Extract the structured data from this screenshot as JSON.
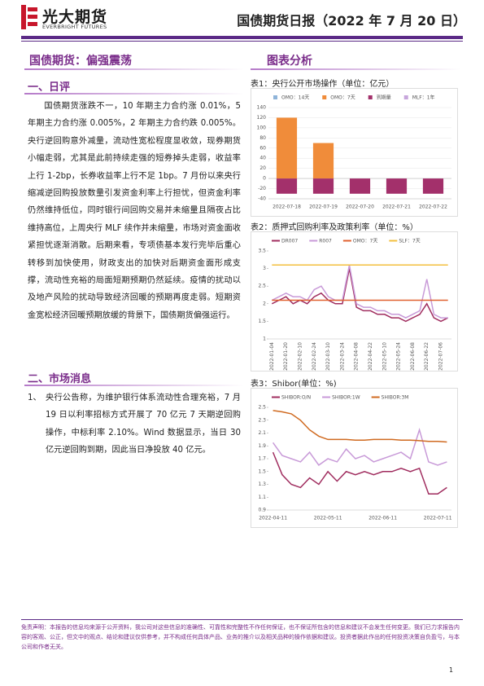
{
  "header": {
    "logo": "光大期货",
    "logo_en": "EVERBRIGHT FUTURES",
    "title": "国债期货日报（2022 年 7 月 20 日）"
  },
  "left": {
    "headline": "国债期货：偏强震荡",
    "section1": {
      "title": "一、日评",
      "body": "国债期货涨跌不一，10 年期主力合约涨 0.01%，5 年期主力合约涨 0.005%，2 年期主力合约跌 0.005%。央行逆回购意外减量，流动性宽松程度显收敛，现券期货小幅走弱，尤其是此前持续走强的短券掉头走弱，收益率上行 1-2bp，长券收益率上行不足 1bp。7 月份以来央行缩减逆回购投放数量引发资金利率上行担忧，但资金利率仍然维持低位，同时银行间回购交易并未缩量且隔夜占比维持高位，上周央行 MLF 续作并未缩量，市场对资金面收紧担忧逐渐消散。后期来看，专项债基本发行完毕后重心转移到加快使用，财政支出的加快对后期资金面形成支撑，流动性充裕的局面短期预期仍然延续。疫情的扰动以及地产风险的扰动导致经济回暖的预期再度走弱。短期资金宽松经济回暖预期放缓的背景下，国债期货偏强运行。"
    },
    "section2": {
      "title": "二、市场消息",
      "items": [
        {
          "num": "1、",
          "text": "央行公告称，为维护银行体系流动性合理充裕，7 月 19 日以利率招标方式开展了 70 亿元 7 天期逆回购操作，中标利率 2.10%。Wind 数据显示，当日 30 亿元逆回购到期，因此当日净投放 40 亿元。"
        }
      ]
    }
  },
  "right": {
    "title": "图表分析"
  },
  "charts": [
    {
      "type": "bar",
      "caption": "表1：央行公开市场操作（单位：亿元）",
      "categories": [
        "2022-07-18",
        "2022-07-19",
        "2022-07-20",
        "2022-07-21",
        "2022-07-22"
      ],
      "series": [
        {
          "name": "OMO：14天",
          "color": "#8fb4d9",
          "values": [
            0,
            0,
            0,
            0,
            0
          ]
        },
        {
          "name": "OMO：7天",
          "color": "#f08c3a",
          "values": [
            120,
            70,
            0,
            0,
            0
          ]
        },
        {
          "name": "到期量",
          "color": "#a3306b",
          "values": [
            -30,
            -30,
            -30,
            -30,
            -30
          ]
        },
        {
          "name": "MLF：1年",
          "color": "#c7a6dc",
          "values": [
            0,
            0,
            0,
            0,
            0
          ]
        }
      ],
      "ylim": [
        -40,
        140
      ],
      "yticks": [
        -40,
        -20,
        0,
        20,
        40,
        60,
        80,
        100,
        120,
        140
      ],
      "grid": true,
      "legend": "top"
    },
    {
      "type": "line",
      "caption": "表2：质押式回购利率及政策利率（单位：%）",
      "categories": [
        "2022-01-04",
        null,
        "2022-01-20",
        null,
        "2022-02-10",
        null,
        "2022-02-24",
        null,
        "2022-03-10",
        null,
        "2022-03-24",
        null,
        "2022-04-08",
        null,
        "2022-04-22",
        null,
        "2022-05-10",
        null,
        "2022-05-24",
        null,
        "2022-06-08",
        null,
        "2022-06-22",
        null,
        "2022-07-06",
        null
      ],
      "series": [
        {
          "name": "DR007",
          "color": "#a02d5f",
          "values": [
            2.0,
            2.1,
            2.2,
            2.0,
            2.1,
            2.0,
            2.2,
            2.3,
            2.1,
            2.0,
            2.0,
            3.0,
            1.9,
            1.8,
            1.8,
            1.7,
            1.7,
            1.6,
            1.6,
            1.5,
            1.6,
            1.7,
            2.0,
            1.6,
            1.5,
            1.6
          ]
        },
        {
          "name": "R007",
          "color": "#c89ad8",
          "values": [
            2.1,
            2.2,
            2.3,
            2.2,
            2.2,
            2.1,
            2.4,
            2.5,
            2.2,
            2.1,
            2.1,
            3.1,
            2.0,
            1.9,
            1.9,
            1.8,
            1.8,
            1.7,
            1.7,
            1.6,
            1.7,
            1.8,
            2.7,
            1.7,
            1.6,
            1.6
          ]
        },
        {
          "name": "OMO：7天",
          "color": "#e0602f",
          "values": [
            2.1,
            2.1,
            2.1,
            2.1,
            2.1,
            2.1,
            2.1,
            2.1,
            2.1,
            2.1,
            2.1,
            2.1,
            2.1,
            2.1,
            2.1,
            2.1,
            2.1,
            2.1,
            2.1,
            2.1,
            2.1,
            2.1,
            2.1,
            2.1,
            2.1,
            2.1
          ]
        },
        {
          "name": "SLF：7天",
          "color": "#f3bf3f",
          "values": [
            3.1,
            3.1,
            3.1,
            3.1,
            3.1,
            3.1,
            3.1,
            3.1,
            3.1,
            3.1,
            3.1,
            3.1,
            3.1,
            3.1,
            3.1,
            3.1,
            3.1,
            3.1,
            3.1,
            3.1,
            3.1,
            3.1,
            3.1,
            3.1,
            3.1,
            3.1
          ]
        }
      ],
      "ylim": [
        1,
        3.5
      ],
      "yticks": [
        1,
        1.5,
        2,
        2.5,
        3,
        3.5
      ],
      "grid": false,
      "legend": "top",
      "rotate_labels": true
    },
    {
      "type": "line",
      "caption": "表3：Shibor(单位：%)",
      "categories": [
        "2022-04-11",
        null,
        null,
        null,
        null,
        null,
        "2022-05-11",
        null,
        null,
        null,
        null,
        null,
        "2022-06-11",
        null,
        null,
        null,
        null,
        null,
        "2022-07-11",
        null
      ],
      "series": [
        {
          "name": "SHIBOR:O/N",
          "color": "#a02d5f",
          "values": [
            1.8,
            1.45,
            1.3,
            1.25,
            1.4,
            1.3,
            1.5,
            1.35,
            1.5,
            1.45,
            1.5,
            1.45,
            1.5,
            1.5,
            1.55,
            1.5,
            1.55,
            1.15,
            1.15,
            1.25
          ]
        },
        {
          "name": "SHIBOR:1W",
          "color": "#c89ad8",
          "values": [
            1.95,
            1.75,
            1.7,
            1.65,
            1.8,
            1.6,
            1.7,
            1.65,
            1.85,
            1.7,
            1.75,
            1.65,
            1.7,
            1.75,
            1.8,
            1.7,
            2.15,
            1.65,
            1.6,
            1.65
          ]
        },
        {
          "name": "SHIBOR:3M",
          "color": "#d06a20",
          "values": [
            2.45,
            2.43,
            2.4,
            2.3,
            2.15,
            2.05,
            2.0,
            2.0,
            2.0,
            1.99,
            1.99,
            2.0,
            2.0,
            2.0,
            1.99,
            1.99,
            1.98,
            1.97,
            1.97,
            1.96
          ]
        }
      ],
      "ylim": [
        0.9,
        2.5
      ],
      "yticks": [
        0.9,
        1.1,
        1.3,
        1.5,
        1.7,
        1.9,
        2.1,
        2.3,
        2.5
      ],
      "grid": false,
      "legend": "top"
    }
  ],
  "footer": {
    "disclaimer": "免责声明：本报告的信息均来源于公开资料，我公司对这些信息的准确性、可靠性和完整性不作任何保证，也不保证所包含的信息和建议不会发生任何变更。我们已力求报告内容的客观、公正，但文中的观点、结论和建议仅供参考，并不构成任何具体产品、业务的推介以及相关品种的操作依据和建议。投资者据此作出的任何投资决策自负盈亏，与本公司和作者无关。",
    "page": "1"
  }
}
